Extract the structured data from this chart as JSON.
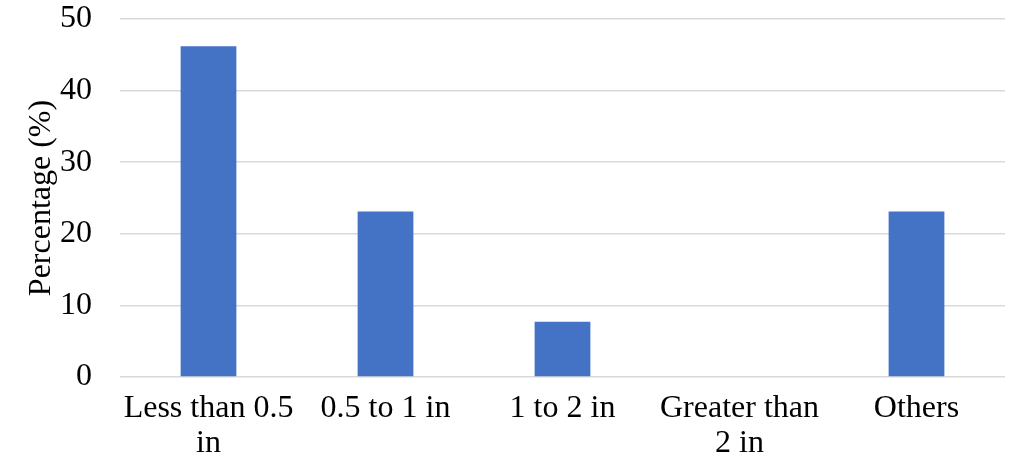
{
  "chart_data": {
    "type": "bar",
    "ylabel": "Percentage (%)",
    "categories": [
      "Less than 0.5 in",
      "0.5 to 1 in",
      "1 to 2 in",
      "Greater than 2 in",
      "Others"
    ],
    "values": [
      46.2,
      23.1,
      7.7,
      0,
      23.1
    ],
    "color": "#4472c4",
    "ylim": [
      0,
      50
    ],
    "yticks": [
      0,
      10,
      20,
      30,
      40,
      50
    ],
    "grid": "y"
  }
}
